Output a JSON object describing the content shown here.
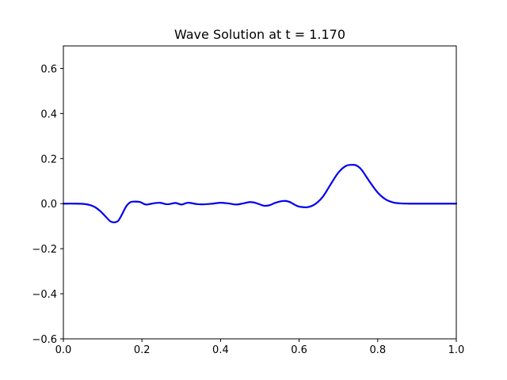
{
  "chart_data": {
    "type": "line",
    "title": "Wave Solution at t = 1.170",
    "xlabel": "",
    "ylabel": "",
    "xlim": [
      0.0,
      1.0
    ],
    "ylim": [
      -0.6,
      0.7
    ],
    "grid": false,
    "xticks": [
      0.0,
      0.2,
      0.4,
      0.6,
      0.8,
      1.0
    ],
    "xtick_labels": [
      "0.0",
      "0.2",
      "0.4",
      "0.6",
      "0.8",
      "1.0"
    ],
    "yticks": [
      -0.6,
      -0.4,
      -0.2,
      0.0,
      0.2,
      0.4,
      0.6
    ],
    "ytick_labels": [
      "−0.6",
      "−0.4",
      "−0.2",
      "0.0",
      "0.2",
      "0.4",
      "0.6"
    ],
    "series": [
      {
        "color": "#0000ee",
        "x": [
          0.0,
          0.03,
          0.05,
          0.065,
          0.08,
          0.095,
          0.11,
          0.12,
          0.13,
          0.14,
          0.15,
          0.16,
          0.17,
          0.18,
          0.195,
          0.21,
          0.225,
          0.245,
          0.26,
          0.27,
          0.285,
          0.3,
          0.31,
          0.32,
          0.34,
          0.36,
          0.38,
          0.4,
          0.42,
          0.44,
          0.46,
          0.475,
          0.49,
          0.51,
          0.525,
          0.54,
          0.56,
          0.575,
          0.59,
          0.6,
          0.62,
          0.64,
          0.66,
          0.68,
          0.7,
          0.72,
          0.74,
          0.75,
          0.76,
          0.78,
          0.8,
          0.82,
          0.84,
          0.86,
          0.88,
          0.9,
          0.95,
          1.0
        ],
        "y": [
          0.0,
          0.0,
          -0.001,
          -0.005,
          -0.015,
          -0.035,
          -0.062,
          -0.079,
          -0.083,
          -0.075,
          -0.045,
          -0.012,
          0.006,
          0.009,
          0.007,
          -0.004,
          0.0,
          0.004,
          -0.002,
          -0.002,
          0.003,
          -0.004,
          0.001,
          0.004,
          -0.002,
          -0.003,
          0.0,
          0.004,
          0.001,
          -0.004,
          0.002,
          0.007,
          0.003,
          -0.009,
          -0.007,
          0.004,
          0.012,
          0.008,
          -0.006,
          -0.013,
          -0.016,
          -0.003,
          0.03,
          0.085,
          0.138,
          0.168,
          0.172,
          0.165,
          0.148,
          0.096,
          0.049,
          0.019,
          0.005,
          0.001,
          0.0,
          0.0,
          0.0,
          0.0
        ]
      }
    ]
  }
}
